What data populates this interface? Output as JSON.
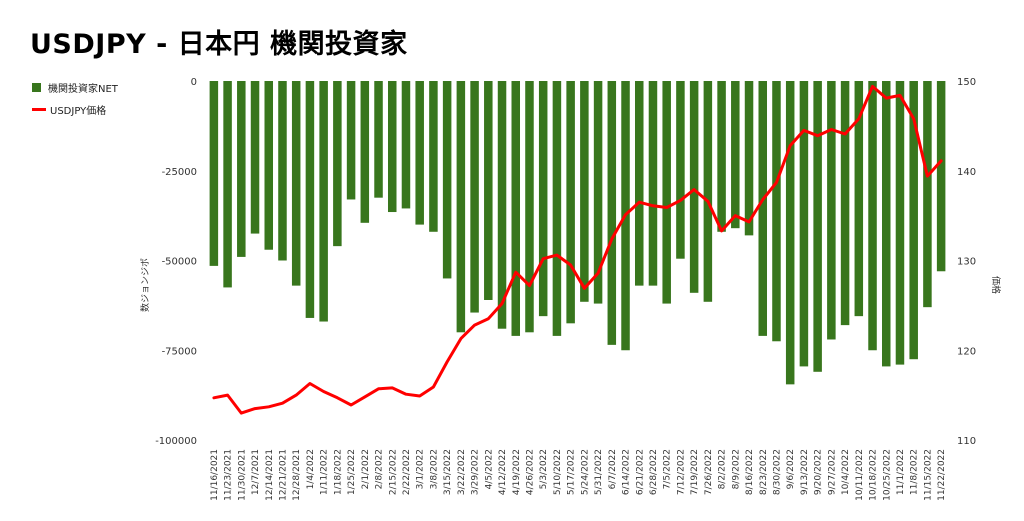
{
  "chart_data": {
    "type": "bar+line",
    "title": "USDJPY - 日本円 機関投資家",
    "ylabel_left": "数ジョンジポ",
    "ylabel_right": "価格",
    "ylim_left": [
      -100000,
      0
    ],
    "ylim_right": [
      110,
      150
    ],
    "yticks_left": [
      "0",
      "-25000",
      "-50000",
      "-75000",
      "-100000"
    ],
    "yticks_right": [
      "150",
      "140",
      "130",
      "120",
      "110"
    ],
    "legend_position": "left",
    "categories": [
      "11/16/2021",
      "11/23/2021",
      "11/30/2021",
      "12/7/2021",
      "12/14/2021",
      "12/21/2021",
      "12/28/2021",
      "1/4/2022",
      "1/11/2022",
      "1/18/2022",
      "1/25/2022",
      "2/1/2022",
      "2/8/2022",
      "2/15/2022",
      "2/22/2022",
      "3/1/2022",
      "3/8/2022",
      "3/15/2022",
      "3/22/2022",
      "3/29/2022",
      "4/5/2022",
      "4/12/2022",
      "4/19/2022",
      "4/26/2022",
      "5/3/2022",
      "5/10/2022",
      "5/17/2022",
      "5/24/2022",
      "5/31/2022",
      "6/7/2022",
      "6/14/2022",
      "6/21/2022",
      "6/28/2022",
      "7/5/2022",
      "7/12/2022",
      "7/19/2022",
      "7/26/2022",
      "8/2/2022",
      "8/9/2022",
      "8/16/2022",
      "8/23/2022",
      "8/30/2022",
      "9/6/2022",
      "9/13/2022",
      "9/20/2022",
      "9/27/2022",
      "10/4/2022",
      "10/11/2022",
      "10/18/2022",
      "10/25/2022",
      "11/1/2022",
      "11/8/2022",
      "11/15/2022",
      "11/22/2022"
    ],
    "series": [
      {
        "name": "機関投資家NET",
        "type": "bar",
        "color": "#38761d",
        "values": [
          -51500,
          -57500,
          -49000,
          -42500,
          -47000,
          -50000,
          -57000,
          -66000,
          -67000,
          -46000,
          -33000,
          -39500,
          -32500,
          -36500,
          -35500,
          -40000,
          -42000,
          -55000,
          -70000,
          -64500,
          -61000,
          -69000,
          -71000,
          -70000,
          -65500,
          -71000,
          -67500,
          -61500,
          -62000,
          -73500,
          -75000,
          -57000,
          -57000,
          -62000,
          -49500,
          -59000,
          -61500,
          -42000,
          -41000,
          -43000,
          -71000,
          -72500,
          -84500,
          -79500,
          -81000,
          -72000,
          -68000,
          -65500,
          -75000,
          -79500,
          -79000,
          -77500,
          -63000,
          -53000
        ]
      },
      {
        "name": "USDJPY価格",
        "type": "line",
        "color": "#ff0000",
        "axis": "right",
        "values": [
          114.7,
          115.0,
          113.0,
          113.5,
          113.7,
          114.1,
          115.0,
          116.3,
          115.4,
          114.7,
          113.9,
          114.8,
          115.7,
          115.8,
          115.1,
          114.9,
          115.9,
          118.7,
          121.3,
          122.8,
          123.5,
          125.2,
          128.7,
          127.2,
          130.2,
          130.6,
          129.5,
          126.9,
          128.6,
          132.4,
          135.1,
          136.5,
          136.1,
          135.9,
          136.7,
          137.9,
          136.6,
          133.3,
          135.0,
          134.3,
          136.8,
          138.7,
          142.8,
          144.5,
          143.9,
          144.6,
          144.1,
          145.8,
          149.4,
          148.1,
          148.4,
          145.8,
          139.4,
          141.1
        ]
      }
    ]
  }
}
